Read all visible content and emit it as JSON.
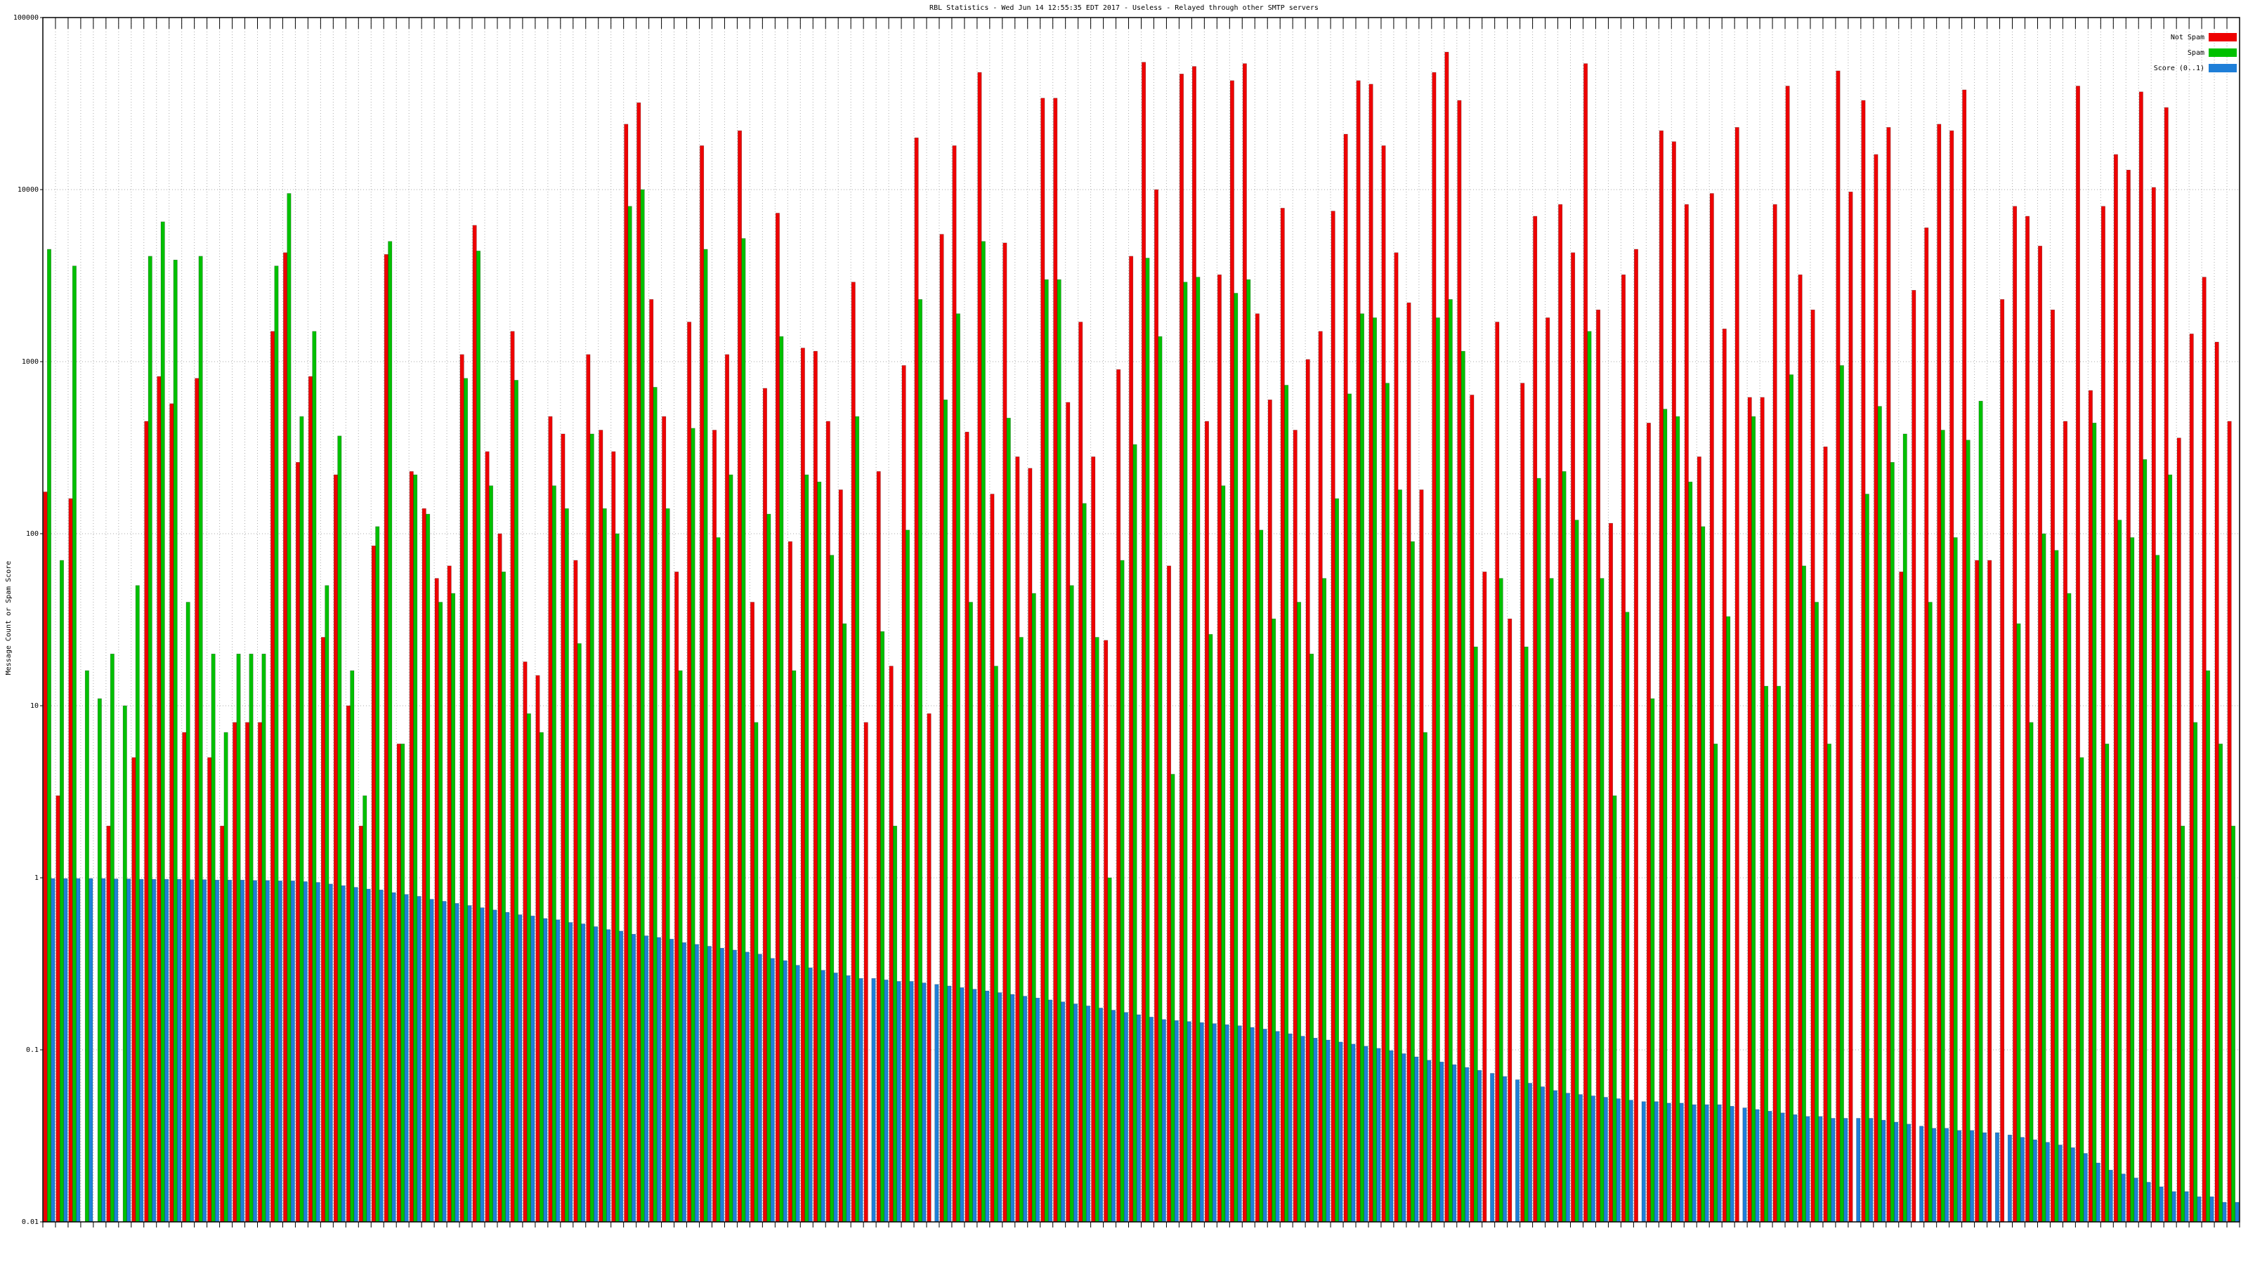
{
  "chart_data": {
    "type": "bar",
    "title": "RBL Statistics - Wed Jun 14 12:55:35 EDT 2017 - Useless - Relayed through other SMTP servers",
    "y_label": "Message Count or Spam Score",
    "log_scale": true,
    "grid": true,
    "legend": "top-right",
    "ylim": [
      0.01,
      100000
    ],
    "yticks": [
      0.01,
      0.1,
      1,
      10,
      100,
      1000,
      10000,
      100000
    ],
    "series": [
      {
        "name": "Not Spam",
        "color": "#ee0000",
        "values": [
          175,
          3,
          160,
          0,
          0,
          2,
          0,
          5,
          450,
          820,
          570,
          7,
          800,
          5,
          2,
          8,
          8,
          8,
          1500,
          4300,
          260,
          820,
          25,
          220,
          10,
          2,
          85,
          4200,
          6,
          230,
          140,
          55,
          65,
          1100,
          6200,
          300,
          100,
          1500,
          18,
          15,
          480,
          380,
          70,
          1100,
          400,
          300,
          24000,
          32000,
          2300,
          480,
          60,
          1700,
          18000,
          400,
          1100,
          22000,
          40,
          700,
          7300,
          90,
          1200,
          1150,
          450,
          180,
          2900,
          8,
          230,
          17,
          950,
          20000,
          9,
          5500,
          18000,
          390,
          48000,
          170,
          4900,
          280,
          240,
          34000,
          34000,
          580,
          1700,
          280,
          24,
          900,
          4100,
          55000,
          10000,
          65,
          47000,
          52000,
          450,
          3200,
          43000,
          54000,
          1900,
          600,
          7800,
          400,
          1030,
          1500,
          7500,
          21000,
          43000,
          41000,
          18000,
          4300,
          2200,
          180,
          48000,
          63000,
          33000,
          640,
          60,
          1700,
          32,
          750,
          7000,
          1800,
          8200,
          4300,
          54000,
          2000,
          115,
          3200,
          4500,
          440,
          22000,
          19000,
          8200,
          280,
          9500,
          1550,
          23000,
          620,
          620,
          8200,
          40000,
          3200,
          2000,
          320,
          49000,
          9700,
          33000,
          16000,
          23000,
          60,
          2600,
          6000,
          24000,
          22000,
          38000,
          70,
          70,
          2300,
          8000,
          7000,
          4700,
          2000,
          450,
          40000,
          680,
          8000,
          16000,
          13000,
          37000,
          10300,
          30000,
          360,
          1450,
          3100,
          1300,
          450
        ]
      },
      {
        "name": "Spam",
        "color": "#00c000",
        "values": [
          4500,
          70,
          3600,
          16,
          11,
          20,
          10,
          50,
          4100,
          6500,
          3900,
          40,
          4100,
          20,
          7,
          20,
          20,
          20,
          3600,
          9500,
          480,
          1500,
          50,
          370,
          16,
          3,
          110,
          5000,
          6,
          220,
          130,
          40,
          45,
          800,
          4400,
          190,
          60,
          780,
          9,
          7,
          190,
          140,
          23,
          380,
          140,
          100,
          8000,
          10000,
          710,
          140,
          16,
          410,
          4500,
          95,
          220,
          5200,
          8,
          130,
          1400,
          16,
          220,
          200,
          75,
          30,
          480,
          0,
          27,
          2,
          105,
          2300,
          0,
          600,
          1900,
          40,
          5000,
          17,
          470,
          25,
          45,
          3000,
          3000,
          50,
          150,
          25,
          1,
          70,
          330,
          4000,
          1400,
          4,
          2900,
          3100,
          26,
          190,
          2500,
          3000,
          105,
          32,
          730,
          40,
          20,
          55,
          160,
          650,
          1900,
          1800,
          750,
          180,
          90,
          7,
          1800,
          2300,
          1150,
          22,
          0,
          55,
          0,
          22,
          210,
          55,
          230,
          120,
          1500,
          55,
          3,
          35,
          0,
          11,
          530,
          480,
          200,
          110,
          6,
          33,
          0,
          480,
          13,
          13,
          840,
          65,
          40,
          6,
          950,
          0,
          170,
          550,
          260,
          380,
          0,
          40,
          400,
          95,
          350,
          590,
          0,
          0,
          30,
          8,
          100,
          80,
          45,
          5,
          440,
          6,
          120,
          95,
          270,
          75,
          220,
          2,
          8,
          16,
          6,
          2
        ]
      },
      {
        "name": "Score (0..1)",
        "color": "#1f7fd8",
        "values": [
          0.99,
          0.99,
          0.99,
          0.99,
          0.99,
          0.985,
          0.985,
          0.98,
          0.98,
          0.98,
          0.98,
          0.975,
          0.975,
          0.97,
          0.97,
          0.97,
          0.965,
          0.965,
          0.96,
          0.96,
          0.95,
          0.94,
          0.92,
          0.9,
          0.88,
          0.86,
          0.85,
          0.82,
          0.8,
          0.78,
          0.75,
          0.73,
          0.71,
          0.69,
          0.67,
          0.65,
          0.63,
          0.61,
          0.6,
          0.58,
          0.57,
          0.55,
          0.54,
          0.52,
          0.5,
          0.49,
          0.47,
          0.46,
          0.45,
          0.44,
          0.42,
          0.41,
          0.4,
          0.39,
          0.38,
          0.37,
          0.36,
          0.34,
          0.33,
          0.31,
          0.3,
          0.29,
          0.28,
          0.27,
          0.26,
          0.26,
          0.255,
          0.25,
          0.25,
          0.245,
          0.24,
          0.235,
          0.23,
          0.225,
          0.22,
          0.215,
          0.21,
          0.205,
          0.2,
          0.195,
          0.19,
          0.185,
          0.18,
          0.175,
          0.17,
          0.165,
          0.16,
          0.155,
          0.15,
          0.148,
          0.146,
          0.144,
          0.142,
          0.14,
          0.138,
          0.135,
          0.132,
          0.128,
          0.124,
          0.12,
          0.117,
          0.114,
          0.111,
          0.108,
          0.105,
          0.102,
          0.099,
          0.095,
          0.091,
          0.087,
          0.085,
          0.082,
          0.079,
          0.076,
          0.073,
          0.07,
          0.067,
          0.064,
          0.061,
          0.058,
          0.056,
          0.055,
          0.054,
          0.053,
          0.052,
          0.051,
          0.05,
          0.05,
          0.049,
          0.049,
          0.048,
          0.048,
          0.048,
          0.047,
          0.046,
          0.045,
          0.044,
          0.043,
          0.042,
          0.041,
          0.041,
          0.04,
          0.04,
          0.04,
          0.04,
          0.039,
          0.038,
          0.037,
          0.036,
          0.035,
          0.035,
          0.034,
          0.034,
          0.033,
          0.033,
          0.032,
          0.031,
          0.03,
          0.029,
          0.028,
          0.027,
          0.025,
          0.022,
          0.02,
          0.019,
          0.018,
          0.017,
          0.016,
          0.015,
          0.015,
          0.014,
          0.014,
          0.013,
          0.013
        ]
      }
    ]
  }
}
